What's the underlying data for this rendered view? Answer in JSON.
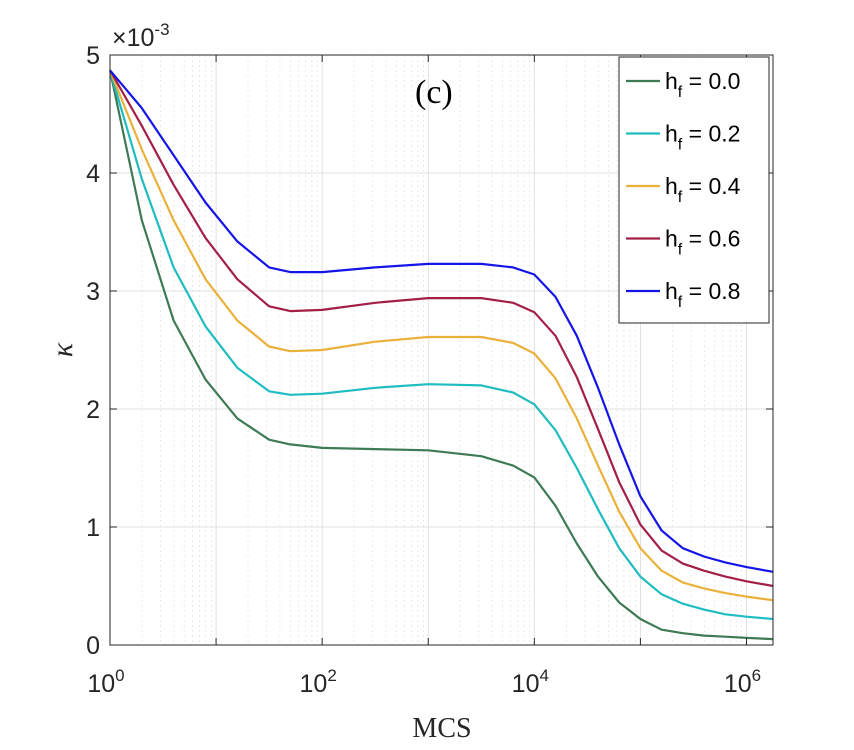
{
  "chart_data": {
    "type": "line",
    "title": "",
    "annotation": "(c)",
    "xlabel": "MCS",
    "ylabel": "κ",
    "x_scale": "log",
    "xlim_log10": [
      0,
      6.25
    ],
    "ylim": [
      0,
      5
    ],
    "y_multiplier": {
      "base": "×10",
      "exponent": "-3"
    },
    "xticks": [
      {
        "base": "10",
        "exp": "0",
        "value": 1
      },
      {
        "base": "10",
        "exp": "2",
        "value": 100
      },
      {
        "base": "10",
        "exp": "4",
        "value": 10000
      },
      {
        "base": "10",
        "exp": "6",
        "value": 1000000
      }
    ],
    "yticks": [
      "0",
      "1",
      "2",
      "3",
      "4",
      "5"
    ],
    "grid": true,
    "legend_position": "top-right",
    "series": [
      {
        "name": "h_f = 0.0",
        "label_main": "h",
        "label_sub": "f",
        "label_rest": " = 0.0",
        "color": "#3f7a56",
        "log10_x": [
          0,
          0.3,
          0.6,
          0.9,
          1.2,
          1.5,
          1.7,
          2.0,
          2.5,
          3.0,
          3.5,
          3.8,
          4.0,
          4.2,
          4.4,
          4.6,
          4.8,
          5.0,
          5.2,
          5.4,
          5.6,
          5.8,
          6.0,
          6.25
        ],
        "values": [
          4.87,
          3.6,
          2.75,
          2.25,
          1.92,
          1.74,
          1.7,
          1.67,
          1.66,
          1.65,
          1.6,
          1.52,
          1.42,
          1.18,
          0.86,
          0.58,
          0.36,
          0.22,
          0.13,
          0.1,
          0.08,
          0.07,
          0.06,
          0.05
        ]
      },
      {
        "name": "h_f = 0.2",
        "label_main": "h",
        "label_sub": "f",
        "label_rest": " = 0.2",
        "color": "#1fbcc0",
        "log10_x": [
          0,
          0.3,
          0.6,
          0.9,
          1.2,
          1.5,
          1.7,
          2.0,
          2.5,
          3.0,
          3.5,
          3.8,
          4.0,
          4.2,
          4.4,
          4.6,
          4.8,
          5.0,
          5.2,
          5.4,
          5.6,
          5.8,
          6.0,
          6.25
        ],
        "values": [
          4.87,
          3.95,
          3.2,
          2.7,
          2.35,
          2.15,
          2.12,
          2.13,
          2.18,
          2.21,
          2.2,
          2.14,
          2.04,
          1.82,
          1.5,
          1.15,
          0.82,
          0.58,
          0.43,
          0.35,
          0.3,
          0.26,
          0.24,
          0.22
        ]
      },
      {
        "name": "h_f = 0.4",
        "label_main": "h",
        "label_sub": "f",
        "label_rest": " = 0.4",
        "color": "#eab13a",
        "log10_x": [
          0,
          0.3,
          0.6,
          0.9,
          1.2,
          1.5,
          1.7,
          2.0,
          2.5,
          3.0,
          3.5,
          3.8,
          4.0,
          4.2,
          4.4,
          4.6,
          4.8,
          5.0,
          5.2,
          5.4,
          5.6,
          5.8,
          6.0,
          6.25
        ],
        "values": [
          4.87,
          4.2,
          3.6,
          3.1,
          2.75,
          2.53,
          2.49,
          2.5,
          2.57,
          2.61,
          2.61,
          2.56,
          2.47,
          2.26,
          1.92,
          1.52,
          1.13,
          0.82,
          0.63,
          0.53,
          0.48,
          0.44,
          0.41,
          0.38
        ]
      },
      {
        "name": "h_f = 0.6",
        "label_main": "h",
        "label_sub": "f",
        "label_rest": " = 0.6",
        "color": "#a31f45",
        "log10_x": [
          0,
          0.3,
          0.6,
          0.9,
          1.2,
          1.5,
          1.7,
          2.0,
          2.5,
          3.0,
          3.5,
          3.8,
          4.0,
          4.2,
          4.4,
          4.6,
          4.8,
          5.0,
          5.2,
          5.4,
          5.6,
          5.8,
          6.0,
          6.25
        ],
        "values": [
          4.87,
          4.4,
          3.9,
          3.45,
          3.1,
          2.87,
          2.83,
          2.84,
          2.9,
          2.94,
          2.94,
          2.9,
          2.82,
          2.62,
          2.27,
          1.83,
          1.38,
          1.02,
          0.8,
          0.69,
          0.63,
          0.58,
          0.54,
          0.5
        ]
      },
      {
        "name": "h_f = 0.8",
        "label_main": "h",
        "label_sub": "f",
        "label_rest": " = 0.8",
        "color": "#1515e8",
        "log10_x": [
          0,
          0.3,
          0.6,
          0.9,
          1.2,
          1.5,
          1.7,
          2.0,
          2.5,
          3.0,
          3.5,
          3.8,
          4.0,
          4.2,
          4.4,
          4.6,
          4.8,
          5.0,
          5.2,
          5.4,
          5.6,
          5.8,
          6.0,
          6.25
        ],
        "values": [
          4.87,
          4.55,
          4.15,
          3.75,
          3.42,
          3.2,
          3.16,
          3.16,
          3.2,
          3.23,
          3.23,
          3.2,
          3.14,
          2.95,
          2.62,
          2.18,
          1.7,
          1.26,
          0.97,
          0.82,
          0.75,
          0.7,
          0.66,
          0.62
        ]
      }
    ]
  }
}
